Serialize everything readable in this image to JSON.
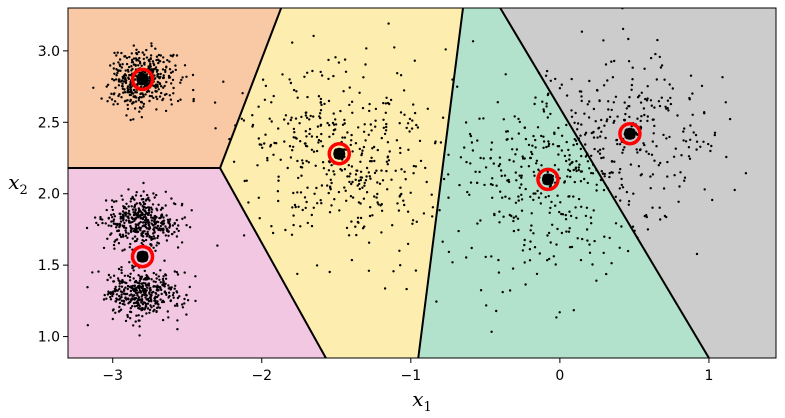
{
  "chart_data": {
    "type": "scatter",
    "title": "",
    "xlabel": "x",
    "xlabel_sub": "1",
    "ylabel": "x",
    "ylabel_sub": "2",
    "xlim": [
      -3.3,
      1.45
    ],
    "ylim": [
      0.85,
      3.3
    ],
    "x_ticks": [
      -3,
      -2,
      -1,
      0,
      1
    ],
    "x_tick_labels": [
      "−3",
      "−2",
      "−1",
      "0",
      "1"
    ],
    "y_ticks": [
      1.0,
      1.5,
      2.0,
      2.5,
      3.0
    ],
    "y_tick_labels": [
      "1.0",
      "1.5",
      "2.0",
      "2.5",
      "3.0"
    ],
    "grid": false,
    "legend": "none",
    "boundary_color": "#000000",
    "centroid_color": "#ff0000",
    "centroid_marker_color": "#000000",
    "point_color": "#000000",
    "regions": [
      {
        "color": "#f9c9a5",
        "polygon": [
          [
            -3.3,
            3.3
          ],
          [
            -1.87,
            3.3
          ],
          [
            -2.28,
            2.18
          ],
          [
            -3.3,
            2.18
          ]
        ]
      },
      {
        "color": "#f2c7e2",
        "polygon": [
          [
            -3.3,
            2.18
          ],
          [
            -2.28,
            2.18
          ],
          [
            -1.57,
            0.85
          ],
          [
            -3.3,
            0.85
          ]
        ]
      },
      {
        "color": "#fdeeaf",
        "polygon": [
          [
            -1.87,
            3.3
          ],
          [
            -0.65,
            3.3
          ],
          [
            -0.95,
            0.85
          ],
          [
            -1.57,
            0.85
          ],
          [
            -2.28,
            2.18
          ]
        ]
      },
      {
        "color": "#b3e2cc",
        "polygon": [
          [
            -0.65,
            3.3
          ],
          [
            -0.4,
            3.3
          ],
          [
            1.0,
            0.85
          ],
          [
            -0.95,
            0.85
          ]
        ]
      },
      {
        "color": "#cccccc",
        "polygon": [
          [
            -0.4,
            3.3
          ],
          [
            1.45,
            3.3
          ],
          [
            1.45,
            0.85
          ],
          [
            1.0,
            0.85
          ]
        ]
      }
    ],
    "boundaries": [
      [
        [
          -3.3,
          2.18
        ],
        [
          -2.28,
          2.18
        ]
      ],
      [
        [
          -2.28,
          2.18
        ],
        [
          -1.87,
          3.3
        ]
      ],
      [
        [
          -2.28,
          2.18
        ],
        [
          -1.57,
          0.85
        ]
      ],
      [
        [
          -0.65,
          3.3
        ],
        [
          -0.95,
          0.85
        ]
      ],
      [
        [
          -0.4,
          3.3
        ],
        [
          1.0,
          0.85
        ]
      ]
    ],
    "centroids": [
      {
        "x": -2.8,
        "y": 2.8
      },
      {
        "x": -2.8,
        "y": 1.56
      },
      {
        "x": -1.48,
        "y": 2.28
      },
      {
        "x": -0.08,
        "y": 2.1
      },
      {
        "x": 0.47,
        "y": 2.42
      }
    ],
    "clusters": [
      {
        "cx": -2.8,
        "cy": 2.8,
        "sx": 0.11,
        "sy": 0.1,
        "n": 420
      },
      {
        "cx": -2.8,
        "cy": 1.8,
        "sx": 0.13,
        "sy": 0.09,
        "n": 420
      },
      {
        "cx": -2.8,
        "cy": 1.3,
        "sx": 0.13,
        "sy": 0.09,
        "n": 420
      },
      {
        "cx": -1.48,
        "cy": 2.28,
        "sx": 0.35,
        "sy": 0.3,
        "n": 430
      },
      {
        "cx": -0.08,
        "cy": 2.1,
        "sx": 0.32,
        "sy": 0.35,
        "n": 330
      },
      {
        "cx": 0.47,
        "cy": 2.42,
        "sx": 0.33,
        "sy": 0.33,
        "n": 260
      }
    ],
    "seed": 7
  }
}
